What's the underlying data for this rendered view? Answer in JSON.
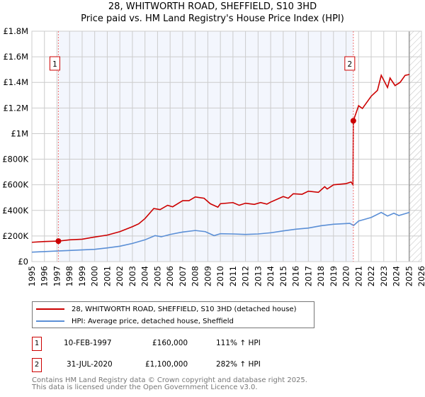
{
  "title_line1": "28, WHITWORTH ROAD, SHEFFIELD, S10 3HD",
  "title_line2": "Price paid vs. HM Land Registry's House Price Index (HPI)",
  "chart_data": {
    "type": "line",
    "ylim": [
      0,
      1800000
    ],
    "xlim": [
      1995,
      2026
    ],
    "y_ticks": [
      {
        "v": 0,
        "label": "£0"
      },
      {
        "v": 200000,
        "label": "£200K"
      },
      {
        "v": 400000,
        "label": "£400K"
      },
      {
        "v": 600000,
        "label": "£600K"
      },
      {
        "v": 800000,
        "label": "£800K"
      },
      {
        "v": 1000000,
        "label": "£1M"
      },
      {
        "v": 1200000,
        "label": "£1.2M"
      },
      {
        "v": 1400000,
        "label": "£1.4M"
      },
      {
        "v": 1600000,
        "label": "£1.6M"
      },
      {
        "v": 1800000,
        "label": "£1.8M"
      }
    ],
    "x_ticks": [
      "1995",
      "1996",
      "1997",
      "1998",
      "1999",
      "2000",
      "2001",
      "2002",
      "2003",
      "2004",
      "2005",
      "2006",
      "2007",
      "2008",
      "2009",
      "2010",
      "2011",
      "2012",
      "2013",
      "2014",
      "2015",
      "2016",
      "2017",
      "2018",
      "2019",
      "2020",
      "2021",
      "2022",
      "2023",
      "2024",
      "2025",
      "2026"
    ],
    "grid": true,
    "shaded_period": [
      1997.11,
      2020.58
    ],
    "forecast_hatch_from": 2025.04,
    "series": [
      {
        "name": "28, WHITWORTH ROAD, SHEFFIELD, S10 3HD (detached house)",
        "color": "#cc0000",
        "points": [
          [
            1995,
            151000
          ],
          [
            1996,
            157000
          ],
          [
            1997.11,
            160000
          ],
          [
            1998,
            170000
          ],
          [
            1999,
            175000
          ],
          [
            2000,
            192000
          ],
          [
            2001,
            207000
          ],
          [
            2002,
            234000
          ],
          [
            2003,
            273000
          ],
          [
            2003.5,
            295000
          ],
          [
            2004,
            336000
          ],
          [
            2004.7,
            415000
          ],
          [
            2005.2,
            406000
          ],
          [
            2005.8,
            440000
          ],
          [
            2006.2,
            428000
          ],
          [
            2007,
            476000
          ],
          [
            2007.5,
            476000
          ],
          [
            2008,
            505000
          ],
          [
            2008.7,
            495000
          ],
          [
            2009.2,
            452000
          ],
          [
            2009.8,
            425000
          ],
          [
            2010,
            452000
          ],
          [
            2011,
            461000
          ],
          [
            2011.5,
            440000
          ],
          [
            2012,
            456000
          ],
          [
            2012.7,
            447000
          ],
          [
            2013.2,
            461000
          ],
          [
            2013.7,
            449000
          ],
          [
            2014,
            465000
          ],
          [
            2015,
            508000
          ],
          [
            2015.4,
            495000
          ],
          [
            2015.8,
            530000
          ],
          [
            2016.5,
            526000
          ],
          [
            2017,
            550000
          ],
          [
            2017.8,
            541000
          ],
          [
            2018.3,
            585000
          ],
          [
            2018.5,
            567000
          ],
          [
            2019,
            600000
          ],
          [
            2020,
            609000
          ],
          [
            2020.4,
            622000
          ],
          [
            2020.55,
            600000
          ],
          [
            2020.58,
            1100000
          ],
          [
            2021,
            1218000
          ],
          [
            2021.3,
            1196000
          ],
          [
            2022,
            1292000
          ],
          [
            2022.5,
            1338000
          ],
          [
            2022.8,
            1455000
          ],
          [
            2023.3,
            1360000
          ],
          [
            2023.5,
            1434000
          ],
          [
            2023.9,
            1375000
          ],
          [
            2024.3,
            1400000
          ],
          [
            2024.7,
            1455000
          ],
          [
            2025.04,
            1462000
          ]
        ]
      },
      {
        "name": "HPI: Average price, detached house, Sheffield",
        "color": "#5b8fd6",
        "points": [
          [
            1995,
            74000
          ],
          [
            1997,
            83000
          ],
          [
            1998,
            87000
          ],
          [
            2000,
            96000
          ],
          [
            2001,
            107000
          ],
          [
            2002,
            120000
          ],
          [
            2003,
            142000
          ],
          [
            2004,
            170000
          ],
          [
            2004.8,
            203000
          ],
          [
            2005.3,
            194000
          ],
          [
            2006,
            212000
          ],
          [
            2007,
            231000
          ],
          [
            2008,
            243000
          ],
          [
            2008.8,
            234000
          ],
          [
            2009.5,
            203000
          ],
          [
            2010,
            218000
          ],
          [
            2011,
            216000
          ],
          [
            2012,
            212000
          ],
          [
            2013,
            216000
          ],
          [
            2014,
            225000
          ],
          [
            2015,
            240000
          ],
          [
            2016,
            253000
          ],
          [
            2017,
            262000
          ],
          [
            2018,
            280000
          ],
          [
            2019,
            292000
          ],
          [
            2020.3,
            299000
          ],
          [
            2020.6,
            282000
          ],
          [
            2021,
            317000
          ],
          [
            2022,
            345000
          ],
          [
            2022.8,
            384000
          ],
          [
            2023.3,
            356000
          ],
          [
            2023.8,
            378000
          ],
          [
            2024.2,
            360000
          ],
          [
            2025.04,
            384000
          ]
        ]
      }
    ],
    "sales": [
      {
        "label": "1",
        "x": 1997.11,
        "y": 160000
      },
      {
        "label": "2",
        "x": 2020.58,
        "y": 1100000
      }
    ]
  },
  "legend": {
    "items": [
      {
        "label": "28, WHITWORTH ROAD, SHEFFIELD, S10 3HD (detached house)",
        "color": "#cc0000"
      },
      {
        "label": "HPI: Average price, detached house, Sheffield",
        "color": "#5b8fd6"
      }
    ]
  },
  "transactions": [
    {
      "marker": "1",
      "date": "10-FEB-1997",
      "price": "£160,000",
      "hpi": "111% ↑ HPI"
    },
    {
      "marker": "2",
      "date": "31-JUL-2020",
      "price": "£1,100,000",
      "hpi": "282% ↑ HPI"
    }
  ],
  "footer_line1": "Contains HM Land Registry data © Crown copyright and database right 2025.",
  "footer_line2": "This data is licensed under the Open Government Licence v3.0."
}
